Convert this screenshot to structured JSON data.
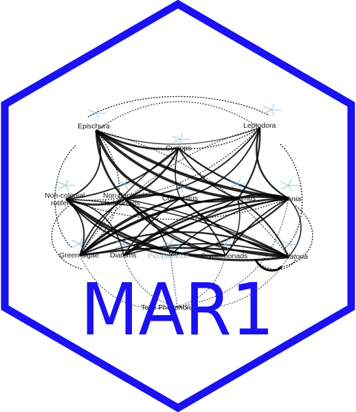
{
  "logo": {
    "title": "MAR1",
    "hex_color": "#1a12f0",
    "text_color": "#1a12f0"
  },
  "nodes": [
    {
      "id": "epischura",
      "label": "Epischura",
      "italic": false
    },
    {
      "id": "leptodora",
      "label": "Leptodora",
      "italic": false
    },
    {
      "id": "cyclops",
      "label": "Cyclops",
      "italic": false
    },
    {
      "id": "noncolonial",
      "label": "Non-colonial",
      "label2": "rotifers",
      "italic": false
    },
    {
      "id": "nondaphnid",
      "label": "Non-daphnid",
      "label2": "cladocerans",
      "italic": false
    },
    {
      "id": "conochilus",
      "label": "Conochilus",
      "italic": false
    },
    {
      "id": "diaptomus",
      "label": "Diaptomus",
      "italic": true
    },
    {
      "id": "daphnia",
      "label": "Daphnia",
      "italic": true
    },
    {
      "id": "greenalgae",
      "label": "Green algae",
      "italic": false
    },
    {
      "id": "diatoms",
      "label": "Diatoms",
      "italic": false
    },
    {
      "id": "picoplankton",
      "label": "Picoplankton",
      "italic": false
    },
    {
      "id": "cryptomonads",
      "label": "Cryptomonads",
      "italic": false
    },
    {
      "id": "oscillatoria",
      "label": "Oscillatoria",
      "italic": true
    },
    {
      "id": "phosphorus",
      "label": "Total Phosphorus",
      "italic": false
    }
  ]
}
